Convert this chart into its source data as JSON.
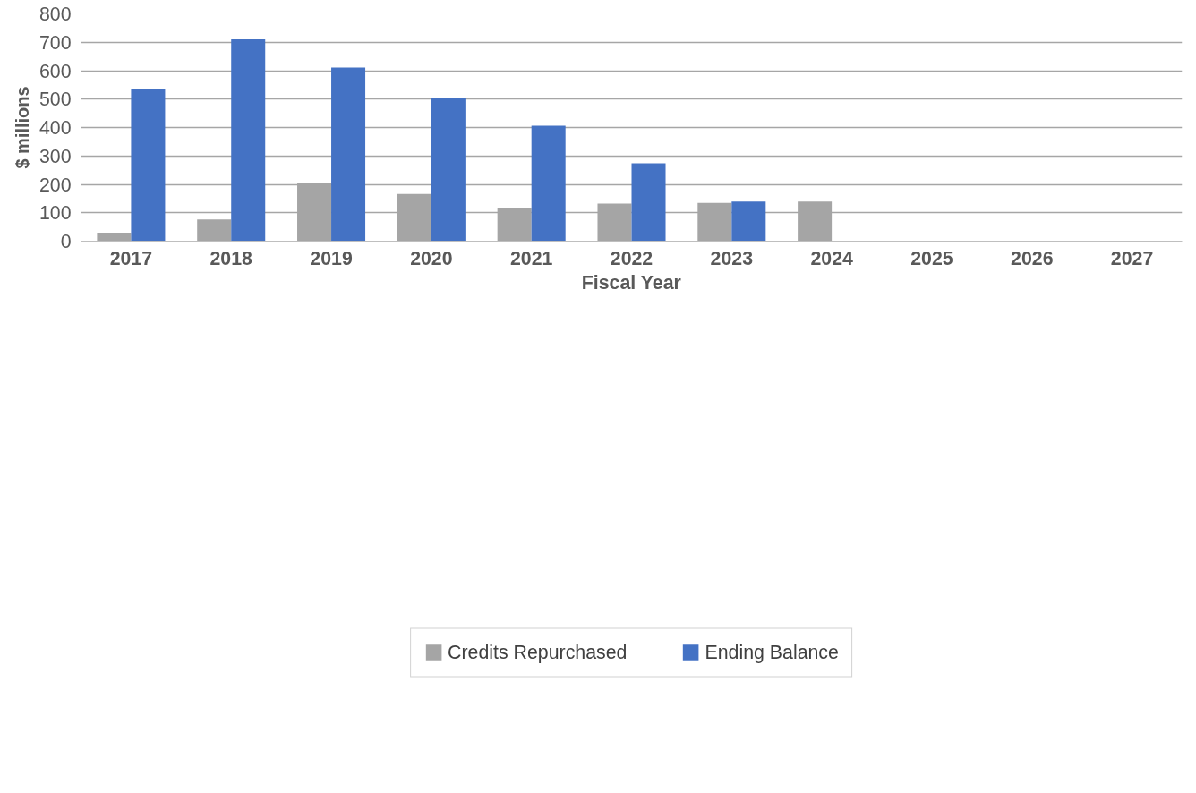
{
  "chart_data": {
    "type": "bar",
    "xlabel": "Fiscal Year",
    "ylabel": "$ millions",
    "categories": [
      "2017",
      "2018",
      "2019",
      "2020",
      "2021",
      "2022",
      "2023",
      "2024",
      "2025",
      "2026",
      "2027"
    ],
    "series": [
      {
        "name": "Credits Repurchased",
        "color": "#a5a5a5",
        "values": [
          30,
          76,
          205,
          166,
          118,
          132,
          135,
          139,
          null,
          null,
          null
        ]
      },
      {
        "name": "Ending Balance",
        "color": "#4472c4",
        "values": [
          537,
          710,
          611,
          504,
          406,
          274,
          139,
          null,
          null,
          null,
          null
        ]
      }
    ],
    "ylim": [
      0,
      800
    ],
    "yticks": [
      0,
      100,
      200,
      300,
      400,
      500,
      600,
      700,
      800
    ],
    "grid": "y",
    "legend": "bottom"
  }
}
